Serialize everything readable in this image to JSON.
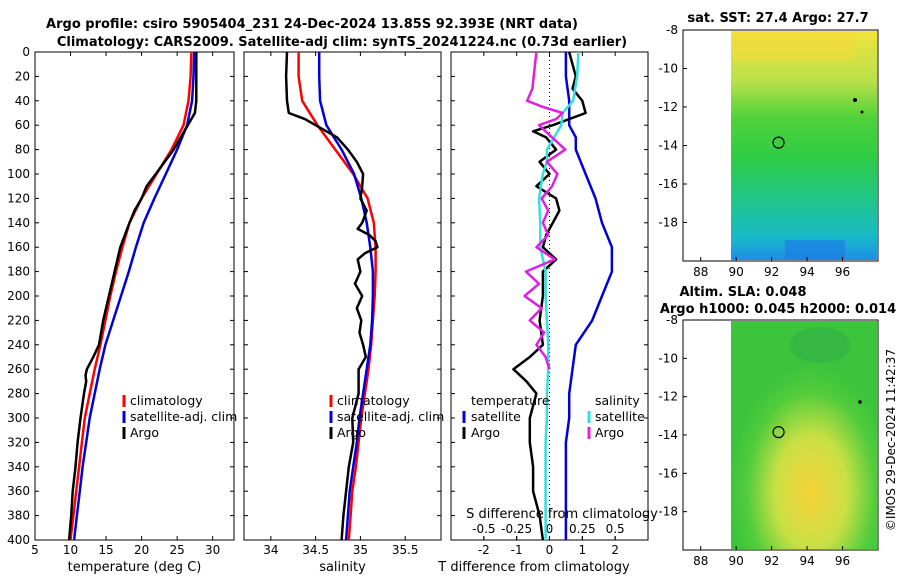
{
  "title": {
    "line1": "Argo profile: csiro 5905404_231 24-Dec-2024 13.85S 92.393E (NRT data)",
    "line2": "Climatology: CARS2009. Satellite-adj clim: synTS_20241224.nc (0.73d earlier)"
  },
  "watermark": "©IMOS 29-Dec-2024 11:42:37",
  "colors": {
    "climatology": "#ff0000",
    "satellite": "#0000dd",
    "argo": "#000000",
    "sal_satellite": "#33e0e0",
    "sal_diff": "#e020e0"
  },
  "chart_data": [
    {
      "type": "line",
      "id": "temperature",
      "xlabel": "temperature (deg C)",
      "xlim": [
        5,
        33
      ],
      "ylim": [
        400,
        0
      ],
      "xticks": [
        "5",
        "10",
        "15",
        "20",
        "25",
        "30"
      ],
      "yticks": [
        "0",
        "20",
        "40",
        "60",
        "80",
        "100",
        "120",
        "140",
        "160",
        "180",
        "200",
        "220",
        "240",
        "260",
        "280",
        "300",
        "320",
        "340",
        "360",
        "380",
        "400"
      ],
      "legend": [
        "climatology",
        "satellite-adj. clim",
        "Argo"
      ],
      "series": [
        {
          "name": "climatology",
          "depth": [
            0,
            20,
            40,
            60,
            80,
            100,
            120,
            140,
            160,
            180,
            200,
            220,
            240,
            260,
            280,
            300,
            320,
            340,
            360,
            380,
            400
          ],
          "values": [
            27.0,
            26.9,
            26.6,
            25.9,
            24.2,
            22.1,
            20.0,
            18.3,
            17.3,
            16.4,
            15.6,
            14.9,
            14.2,
            13.4,
            12.7,
            12.0,
            11.6,
            11.2,
            10.8,
            10.4,
            10.0
          ]
        },
        {
          "name": "satellite-adj. clim",
          "depth": [
            0,
            20,
            40,
            60,
            80,
            100,
            120,
            140,
            160,
            180,
            200,
            220,
            240,
            260,
            280,
            300,
            320,
            340,
            360,
            380,
            400
          ],
          "values": [
            27.4,
            27.3,
            27.1,
            26.4,
            25.0,
            23.4,
            21.8,
            20.3,
            19.2,
            18.2,
            17.1,
            16.0,
            14.9,
            14.1,
            13.4,
            12.7,
            12.2,
            11.7,
            11.3,
            10.9,
            10.5
          ]
        },
        {
          "name": "Argo",
          "depth": [
            0,
            20,
            40,
            50,
            60,
            80,
            100,
            110,
            120,
            130,
            140,
            160,
            180,
            200,
            220,
            240,
            250,
            260,
            265,
            270,
            280,
            300,
            320,
            340,
            360,
            380,
            400
          ],
          "values": [
            27.7,
            27.7,
            27.7,
            27.5,
            26.5,
            24.5,
            22.0,
            20.7,
            20.0,
            19.0,
            18.3,
            17.0,
            16.2,
            15.4,
            14.6,
            14.0,
            13.2,
            12.3,
            12.1,
            12.2,
            11.9,
            11.4,
            11.0,
            10.7,
            10.3,
            10.1,
            9.8
          ]
        }
      ]
    },
    {
      "type": "line",
      "id": "salinity",
      "xlabel": "salinity",
      "xlim": [
        33.7,
        35.9
      ],
      "ylim": [
        400,
        0
      ],
      "xticks": [
        "34",
        "34.5",
        "35",
        "35.5"
      ],
      "legend": [
        "climatology",
        "satellite-adj. clim",
        "Argo"
      ],
      "series": [
        {
          "name": "climatology",
          "depth": [
            0,
            20,
            40,
            60,
            80,
            100,
            120,
            140,
            160,
            180,
            200,
            220,
            240,
            260,
            280,
            300,
            320,
            340,
            360,
            380,
            400
          ],
          "values": [
            34.31,
            34.31,
            34.35,
            34.52,
            34.72,
            34.92,
            35.08,
            35.15,
            35.17,
            35.17,
            35.16,
            35.14,
            35.12,
            35.09,
            35.05,
            35.01,
            34.98,
            34.95,
            34.91,
            34.89,
            34.87
          ]
        },
        {
          "name": "satellite-adj. clim",
          "depth": [
            0,
            20,
            40,
            60,
            80,
            100,
            120,
            140,
            160,
            180,
            200,
            220,
            240,
            260,
            280,
            300,
            320,
            340,
            360,
            380,
            400
          ],
          "values": [
            34.54,
            34.54,
            34.55,
            34.62,
            34.79,
            34.93,
            35.01,
            35.07,
            35.11,
            35.14,
            35.14,
            35.13,
            35.11,
            35.07,
            35.03,
            34.99,
            34.96,
            34.92,
            34.88,
            34.86,
            34.84
          ]
        },
        {
          "name": "Argo",
          "depth": [
            0,
            20,
            40,
            50,
            55,
            60,
            65,
            70,
            80,
            90,
            100,
            110,
            120,
            130,
            140,
            145,
            150,
            155,
            160,
            165,
            170,
            180,
            190,
            200,
            210,
            220,
            230,
            240,
            250,
            260,
            280,
            300,
            320,
            340,
            360,
            380,
            400
          ],
          "values": [
            34.18,
            34.17,
            34.18,
            34.2,
            34.38,
            34.5,
            34.62,
            34.74,
            34.86,
            34.96,
            35.03,
            35.02,
            35.0,
            35.07,
            35.02,
            34.97,
            35.1,
            35.17,
            35.19,
            35.05,
            34.97,
            35.0,
            34.94,
            35.02,
            34.96,
            35.01,
            34.99,
            35.03,
            35.06,
            34.98,
            34.98,
            34.91,
            34.92,
            34.87,
            34.84,
            34.81,
            34.79
          ]
        }
      ]
    },
    {
      "type": "line",
      "id": "differences",
      "xlabel": "T difference from climatology",
      "xlabel2": "S difference from climatology",
      "xlim": [
        -3,
        3
      ],
      "s_xlim": [
        -0.75,
        0.75
      ],
      "ylim": [
        400,
        0
      ],
      "xticks": [
        "-2",
        "-1",
        "0",
        "1",
        "2"
      ],
      "s_xticks": [
        "-0.5",
        "-0.25",
        "0",
        "0.25",
        "0.5"
      ],
      "legend_temperature_title": "temperature",
      "legend_salinity_title": "salinity",
      "legend": {
        "t_sat": "satellite",
        "t_argo": "Argo",
        "s_sat": "satellite",
        "s_argo": "Argo"
      },
      "series": [
        {
          "name": "temperature satellite",
          "depth": [
            0,
            20,
            40,
            60,
            70,
            80,
            100,
            120,
            140,
            160,
            180,
            200,
            220,
            240,
            260,
            280,
            300,
            320,
            340,
            360,
            380,
            400
          ],
          "values": [
            0.5,
            0.5,
            0.6,
            0.6,
            0.8,
            0.8,
            1.1,
            1.4,
            1.6,
            1.9,
            1.9,
            1.6,
            1.3,
            0.8,
            0.7,
            0.6,
            0.6,
            0.5,
            0.5,
            0.5,
            0.5,
            0.5
          ]
        },
        {
          "name": "temperature Argo",
          "depth": [
            0,
            20,
            30,
            40,
            50,
            60,
            65,
            70,
            80,
            90,
            100,
            110,
            120,
            130,
            140,
            150,
            160,
            170,
            180,
            200,
            220,
            240,
            250,
            260,
            270,
            280,
            300,
            320,
            340,
            360,
            380,
            400
          ],
          "values": [
            0.6,
            0.8,
            0.7,
            1.0,
            1.1,
            0.1,
            -0.5,
            -0.1,
            0.2,
            -0.3,
            0.0,
            -0.4,
            0.2,
            0.3,
            0.1,
            -0.1,
            -0.2,
            0.2,
            -0.2,
            -0.2,
            -0.3,
            -0.2,
            -0.6,
            -1.1,
            -0.7,
            -0.4,
            -0.6,
            -0.6,
            -0.5,
            -0.5,
            -0.3,
            -0.2
          ]
        },
        {
          "name": "salinity satellite",
          "depth": [
            0,
            20,
            40,
            50,
            60,
            80,
            90,
            100,
            120,
            140,
            160,
            180,
            200,
            220,
            240,
            260,
            280,
            300,
            320,
            340,
            360,
            380,
            400
          ],
          "values": [
            0.22,
            0.21,
            0.18,
            0.1,
            0.09,
            -0.02,
            -0.02,
            -0.05,
            -0.08,
            -0.07,
            -0.07,
            -0.03,
            -0.03,
            -0.02,
            -0.01,
            -0.01,
            -0.02,
            -0.02,
            -0.03,
            -0.03,
            -0.03,
            -0.03,
            -0.03
          ]
        },
        {
          "name": "salinity Argo",
          "depth": [
            0,
            20,
            30,
            40,
            45,
            50,
            55,
            60,
            70,
            80,
            90,
            100,
            110,
            120,
            130,
            140,
            150,
            160,
            170,
            180,
            190,
            200,
            210,
            220,
            230,
            240,
            250,
            260
          ],
          "values": [
            -0.1,
            -0.12,
            -0.13,
            -0.17,
            -0.05,
            0.1,
            0.05,
            -0.08,
            0.02,
            0.12,
            -0.02,
            0.06,
            0.02,
            -0.06,
            -0.01,
            -0.05,
            -0.01,
            -0.1,
            0.04,
            -0.18,
            -0.08,
            -0.19,
            -0.06,
            -0.15,
            -0.04,
            -0.1,
            -0.03,
            0.0
          ]
        }
      ]
    },
    {
      "type": "heatmap",
      "id": "sst_map",
      "title": "sat. SST: 27.4 Argo: 27.7",
      "xlim": [
        87,
        98
      ],
      "ylim": [
        -20,
        -8
      ],
      "xticks": [
        "88",
        "90",
        "92",
        "94",
        "96"
      ],
      "yticks": [
        "-8",
        "-10",
        "-12",
        "-14",
        "-16",
        "-18"
      ],
      "profile_marker": {
        "lon": 92.39,
        "lat": -13.85
      }
    },
    {
      "type": "heatmap",
      "id": "sla_map",
      "title": "Altim. SLA: 0.048",
      "title2": "Argo h1000: 0.045 h2000: 0.014",
      "xlim": [
        87,
        98
      ],
      "ylim": [
        -20,
        -8
      ],
      "xticks": [
        "88",
        "90",
        "92",
        "94",
        "96"
      ],
      "yticks": [
        "-8",
        "-10",
        "-12",
        "-14",
        "-16",
        "-18"
      ],
      "profile_marker": {
        "lon": 92.39,
        "lat": -13.85
      }
    }
  ]
}
